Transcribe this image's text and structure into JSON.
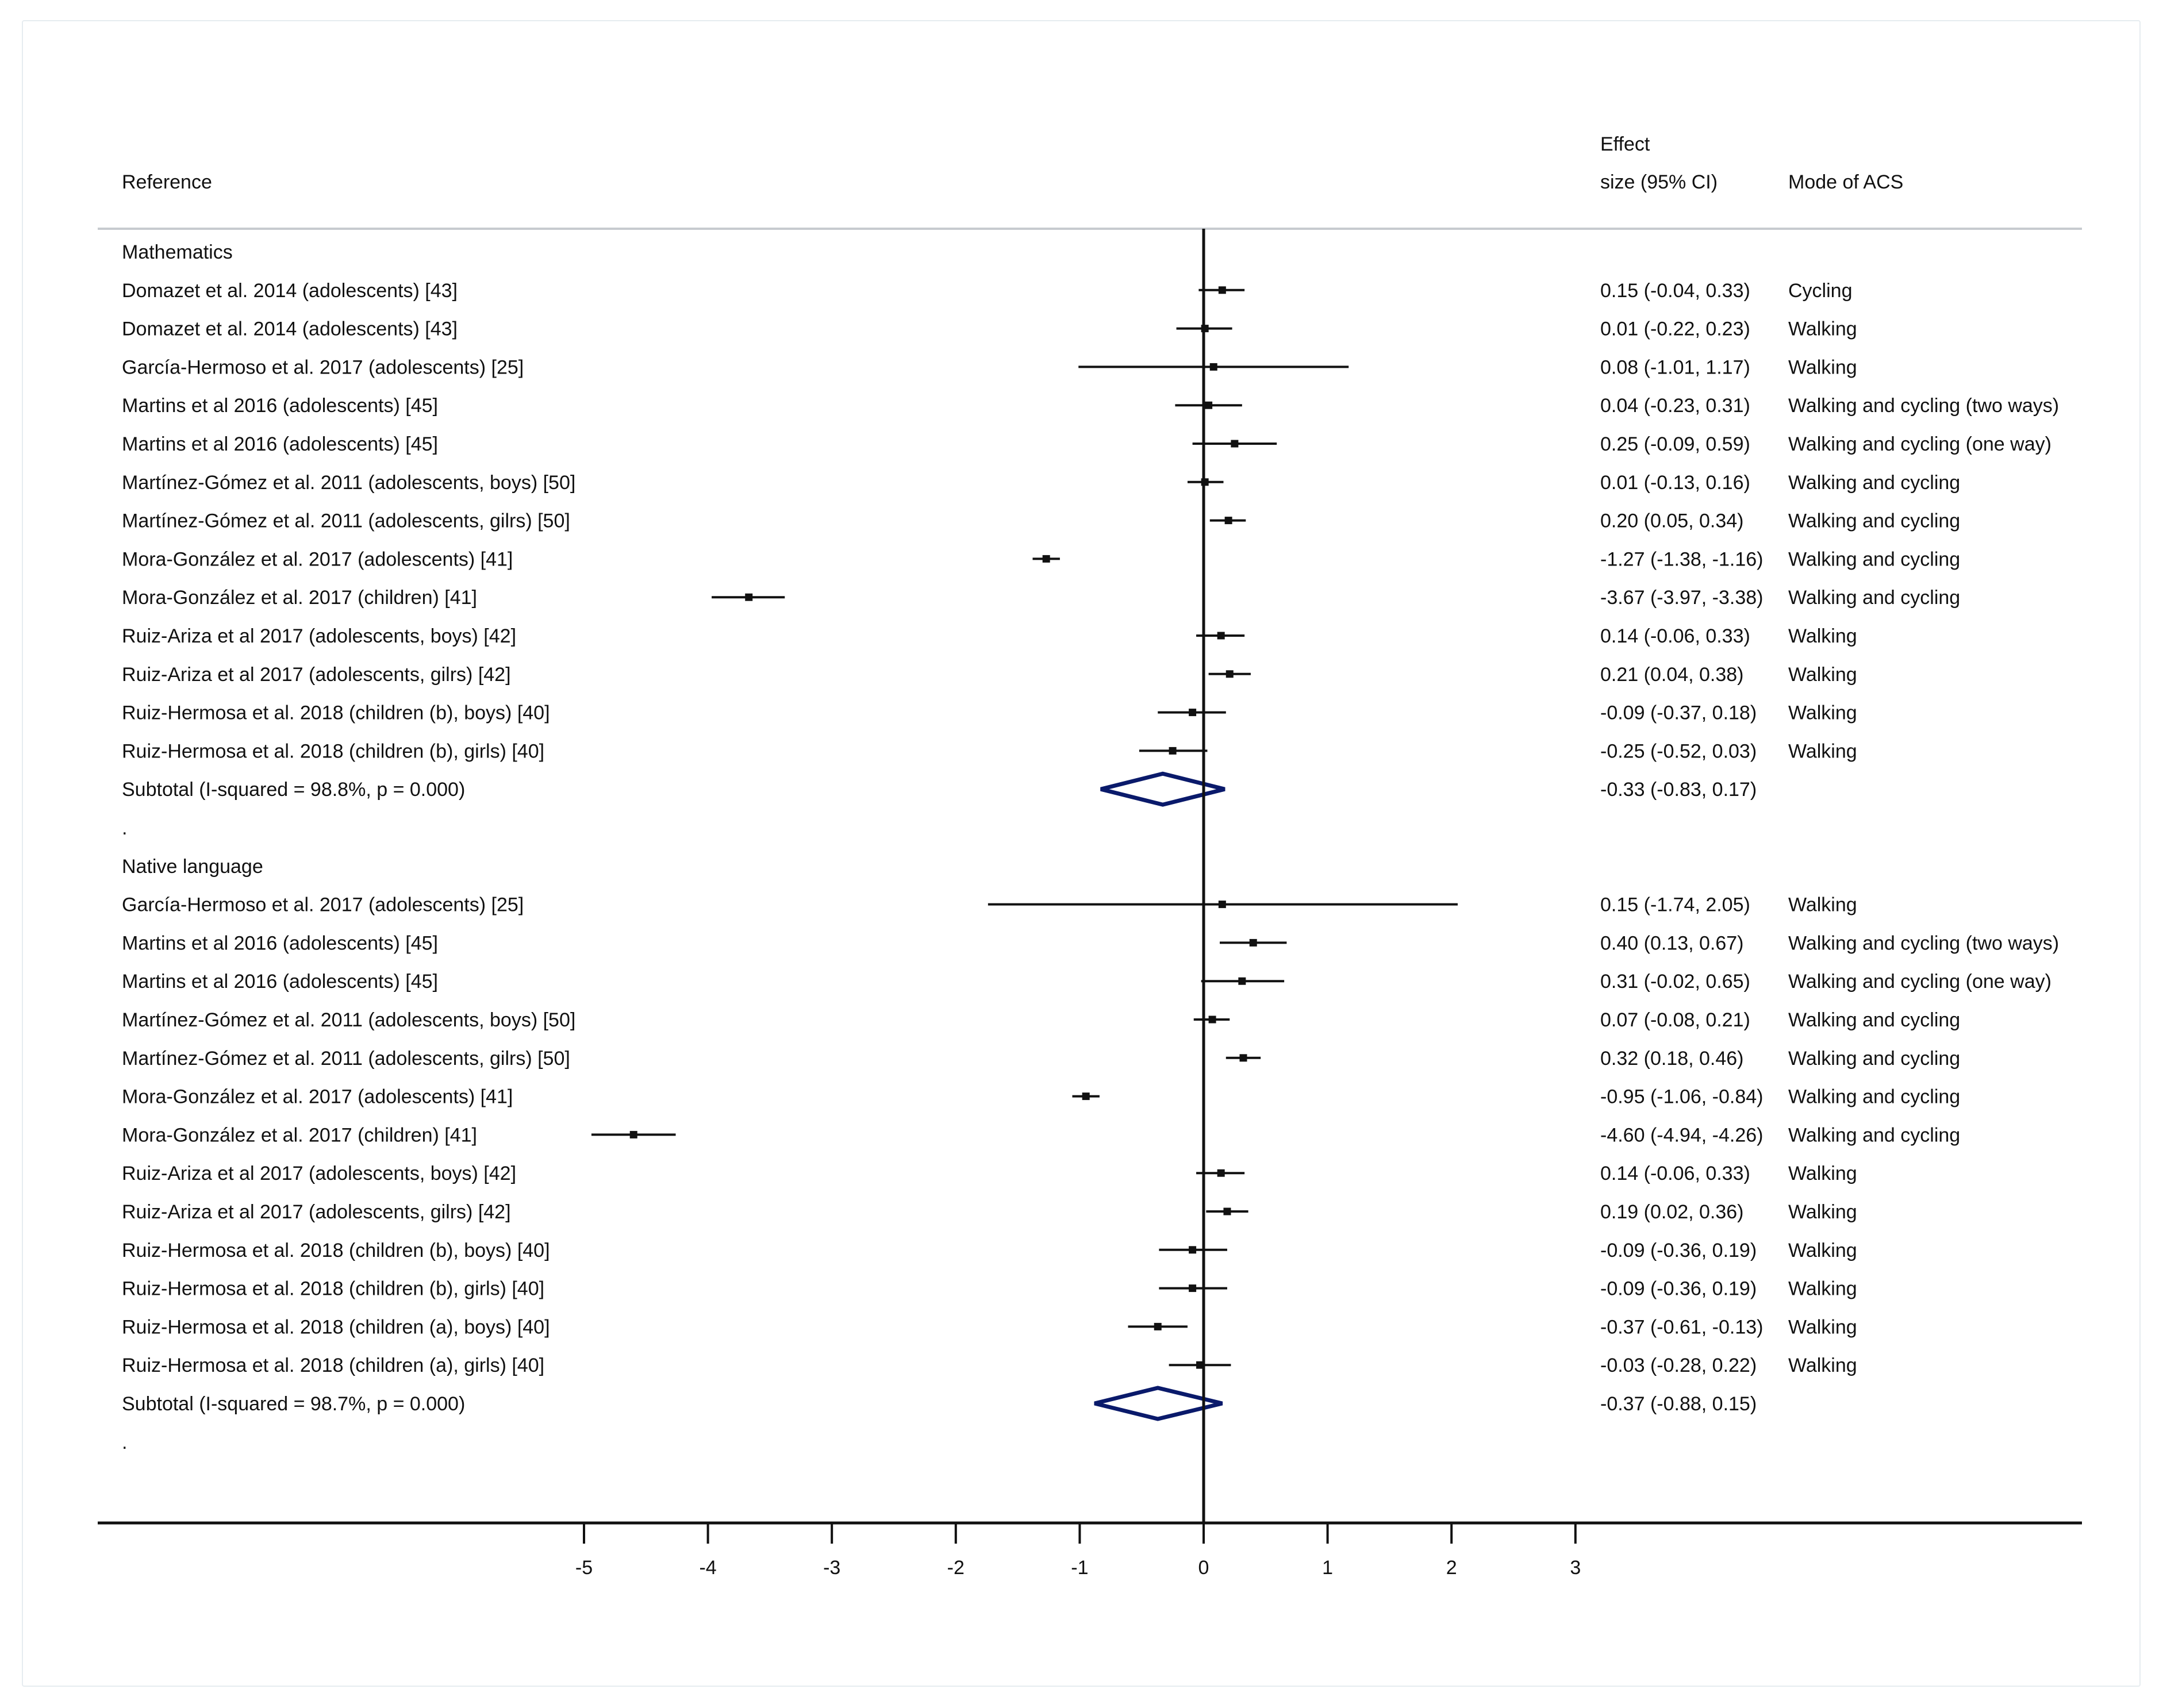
{
  "header": {
    "reference": "Reference",
    "effect_line1": "Effect",
    "effect_line2": "size (95% CI)",
    "mode": "Mode of ACS"
  },
  "colors": {
    "diamond": "#0a1a6b",
    "ink": "#111111",
    "rule": "#c7cbcf"
  },
  "chart_data": {
    "type": "forest",
    "xlim": [
      -5,
      3
    ],
    "x_ticks": [
      "-5",
      "-4",
      "-3",
      "-2",
      "-1",
      "0",
      "1",
      "2",
      "3"
    ],
    "rows": [
      {
        "kind": "heading",
        "label": "Mathematics"
      },
      {
        "kind": "study",
        "label": "Domazet et al. 2014  (adolescents) [43]",
        "es": 0.15,
        "lo": -0.04,
        "hi": 0.33,
        "es_text": "0.15 (-0.04, 0.33)",
        "mode": "Cycling"
      },
      {
        "kind": "study",
        "label": "Domazet et al. 2014  (adolescents) [43]",
        "es": 0.01,
        "lo": -0.22,
        "hi": 0.23,
        "es_text": "0.01 (-0.22, 0.23)",
        "mode": "Walking"
      },
      {
        "kind": "study",
        "label": "García-Hermoso et al. 2017  (adolescents) [25]",
        "es": 0.08,
        "lo": -1.01,
        "hi": 1.17,
        "es_text": "0.08 (-1.01, 1.17)",
        "mode": "Walking"
      },
      {
        "kind": "study",
        "label": "Martins et al 2016  (adolescents) [45]",
        "es": 0.04,
        "lo": -0.23,
        "hi": 0.31,
        "es_text": "0.04 (-0.23, 0.31)",
        "mode": "Walking and cycling (two ways)"
      },
      {
        "kind": "study",
        "label": "Martins et al 2016  (adolescents) [45]",
        "es": 0.25,
        "lo": -0.09,
        "hi": 0.59,
        "es_text": "0.25 (-0.09, 0.59)",
        "mode": "Walking and cycling (one way)"
      },
      {
        "kind": "study",
        "label": "Martínez-Gómez et al. 2011  (adolescents, boys)  [50]",
        "es": 0.01,
        "lo": -0.13,
        "hi": 0.16,
        "es_text": "0.01 (-0.13, 0.16)",
        "mode": "Walking and cycling"
      },
      {
        "kind": "study",
        "label": "Martínez-Gómez et al. 2011  (adolescents, gilrs) [50]",
        "es": 0.2,
        "lo": 0.05,
        "hi": 0.34,
        "es_text": "0.20 (0.05, 0.34)",
        "mode": "Walking and cycling"
      },
      {
        "kind": "study",
        "label": "Mora-González et al. 2017  (adolescents) [41]",
        "es": -1.27,
        "lo": -1.38,
        "hi": -1.16,
        "es_text": "-1.27 (-1.38, -1.16)",
        "mode": "Walking and cycling"
      },
      {
        "kind": "study",
        "label": "Mora-González et al. 2017  (children) [41]",
        "es": -3.67,
        "lo": -3.97,
        "hi": -3.38,
        "es_text": "-3.67 (-3.97, -3.38)",
        "mode": "Walking and cycling"
      },
      {
        "kind": "study",
        "label": "Ruiz-Ariza et al 2017  (adolescents, boys)  [42]",
        "es": 0.14,
        "lo": -0.06,
        "hi": 0.33,
        "es_text": "0.14 (-0.06, 0.33)",
        "mode": "Walking"
      },
      {
        "kind": "study",
        "label": "Ruiz-Ariza et al 2017  (adolescents, gilrs)  [42]",
        "es": 0.21,
        "lo": 0.04,
        "hi": 0.38,
        "es_text": "0.21 (0.04, 0.38)",
        "mode": "Walking"
      },
      {
        "kind": "study",
        "label": "Ruiz-Hermosa et al. 2018 (children (b), boys) [40]",
        "es": -0.09,
        "lo": -0.37,
        "hi": 0.18,
        "es_text": "-0.09 (-0.37, 0.18)",
        "mode": "Walking"
      },
      {
        "kind": "study",
        "label": "Ruiz-Hermosa et al. 2018 (children (b), girls) [40]",
        "es": -0.25,
        "lo": -0.52,
        "hi": 0.03,
        "es_text": "-0.25 (-0.52, 0.03)",
        "mode": "Walking"
      },
      {
        "kind": "subtotal",
        "label": "Subtotal  (I-squared = 98.8%, p = 0.000)",
        "es": -0.33,
        "lo": -0.83,
        "hi": 0.17,
        "es_text": "-0.33 (-0.83, 0.17)",
        "mode": ""
      },
      {
        "kind": "heading",
        "label": "."
      },
      {
        "kind": "heading",
        "label": "Native language"
      },
      {
        "kind": "study",
        "label": "García-Hermoso et al. 2017  (adolescents) [25]",
        "es": 0.15,
        "lo": -1.74,
        "hi": 2.05,
        "es_text": "0.15 (-1.74, 2.05)",
        "mode": "Walking"
      },
      {
        "kind": "study",
        "label": "Martins et al 2016  (adolescents) [45]",
        "es": 0.4,
        "lo": 0.13,
        "hi": 0.67,
        "es_text": "0.40 (0.13, 0.67)",
        "mode": "Walking and cycling (two ways)"
      },
      {
        "kind": "study",
        "label": "Martins et al 2016  (adolescents) [45]",
        "es": 0.31,
        "lo": -0.02,
        "hi": 0.65,
        "es_text": "0.31 (-0.02, 0.65)",
        "mode": "Walking and cycling (one way)"
      },
      {
        "kind": "study",
        "label": "Martínez-Gómez et al. 2011  (adolescents, boys)  [50]",
        "es": 0.07,
        "lo": -0.08,
        "hi": 0.21,
        "es_text": "0.07 (-0.08, 0.21)",
        "mode": "Walking and cycling"
      },
      {
        "kind": "study",
        "label": "Martínez-Gómez et al. 2011  (adolescents, gilrs) [50]",
        "es": 0.32,
        "lo": 0.18,
        "hi": 0.46,
        "es_text": "0.32 (0.18, 0.46)",
        "mode": "Walking and cycling"
      },
      {
        "kind": "study",
        "label": "Mora-González et al. 2017  (adolescents) [41]",
        "es": -0.95,
        "lo": -1.06,
        "hi": -0.84,
        "es_text": "-0.95 (-1.06, -0.84)",
        "mode": "Walking and cycling"
      },
      {
        "kind": "study",
        "label": "Mora-González et al. 2017  (children) [41]",
        "es": -4.6,
        "lo": -4.94,
        "hi": -4.26,
        "es_text": "-4.60 (-4.94, -4.26)",
        "mode": "Walking and cycling"
      },
      {
        "kind": "study",
        "label": "Ruiz-Ariza et al 2017  (adolescents, boys)  [42]",
        "es": 0.14,
        "lo": -0.06,
        "hi": 0.33,
        "es_text": "0.14 (-0.06, 0.33)",
        "mode": "Walking"
      },
      {
        "kind": "study",
        "label": "Ruiz-Ariza et al 2017  (adolescents, gilrs)  [42]",
        "es": 0.19,
        "lo": 0.02,
        "hi": 0.36,
        "es_text": "0.19 (0.02, 0.36)",
        "mode": "Walking"
      },
      {
        "kind": "study",
        "label": "Ruiz-Hermosa et al. 2018 (children (b), boys) [40]",
        "es": -0.09,
        "lo": -0.36,
        "hi": 0.19,
        "es_text": "-0.09 (-0.36, 0.19)",
        "mode": "Walking"
      },
      {
        "kind": "study",
        "label": "Ruiz-Hermosa et al. 2018 (children (b), girls) [40]",
        "es": -0.09,
        "lo": -0.36,
        "hi": 0.19,
        "es_text": "-0.09 (-0.36, 0.19)",
        "mode": "Walking"
      },
      {
        "kind": "study",
        "label": "Ruiz-Hermosa et al. 2018 (children (a), boys) [40]",
        "es": -0.37,
        "lo": -0.61,
        "hi": -0.13,
        "es_text": "-0.37 (-0.61, -0.13)",
        "mode": "Walking"
      },
      {
        "kind": "study",
        "label": "Ruiz-Hermosa et al. 2018 (children (a), girls) [40]",
        "es": -0.03,
        "lo": -0.28,
        "hi": 0.22,
        "es_text": "-0.03 (-0.28, 0.22)",
        "mode": "Walking"
      },
      {
        "kind": "subtotal",
        "label": "Subtotal  (I-squared = 98.7%, p = 0.000)",
        "es": -0.37,
        "lo": -0.88,
        "hi": 0.15,
        "es_text": "-0.37 (-0.88, 0.15)",
        "mode": ""
      },
      {
        "kind": "heading",
        "label": "."
      }
    ]
  }
}
